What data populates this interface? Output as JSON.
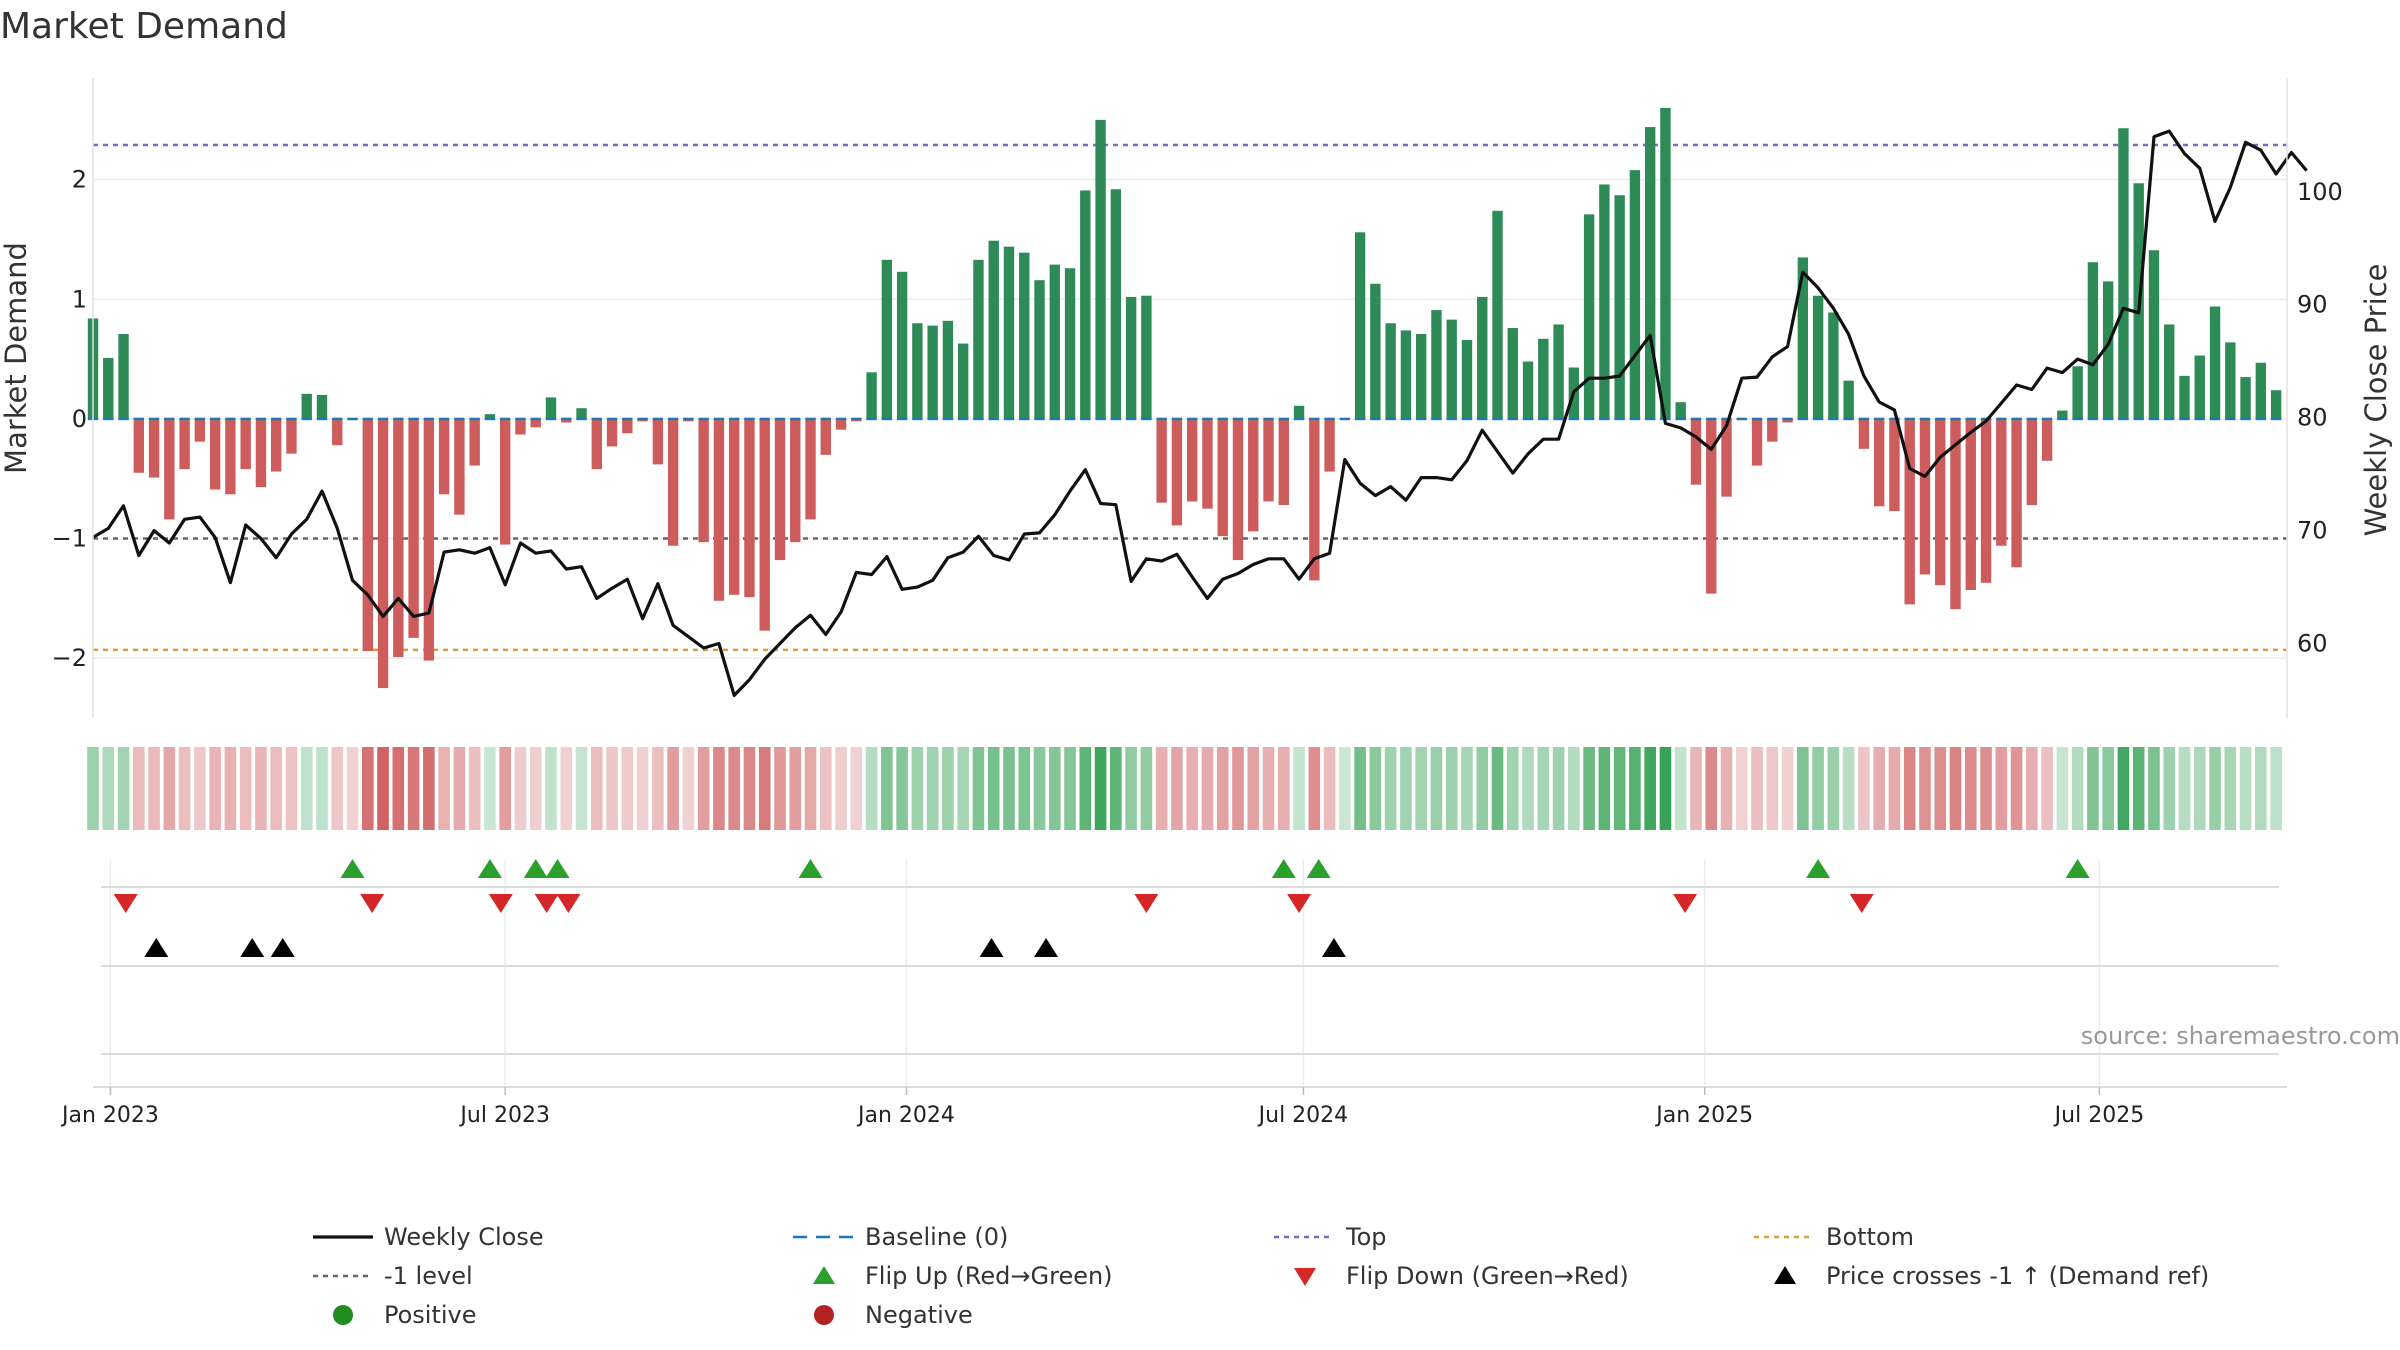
{
  "chart_data": {
    "type": "bar",
    "title": "Market Demand",
    "ylabel": "Market Demand",
    "y2label": "Weekly Close Price",
    "ylim": [
      -2.5,
      2.85
    ],
    "y2lim": [
      53.3,
      110.0
    ],
    "yticks": [
      "−2",
      "−1",
      "0",
      "1",
      "2"
    ],
    "y2ticks": [
      "60",
      "70",
      "80",
      "90",
      "100"
    ],
    "x_start": "2022-12-24",
    "x_end": "2025-09-25",
    "x_ticks": [
      {
        "date": "2023-01-01",
        "label": "Jan 2023"
      },
      {
        "date": "2023-07-01",
        "label": "Jul 2023"
      },
      {
        "date": "2024-01-01",
        "label": "Jan 2024"
      },
      {
        "date": "2024-07-01",
        "label": "Jul 2024"
      },
      {
        "date": "2025-01-01",
        "label": "Jan 2025"
      },
      {
        "date": "2025-07-01",
        "label": "Jul 2025"
      }
    ],
    "first_week": "2022-12-24",
    "reference_lines": {
      "top": 2.29,
      "bottom": -1.93,
      "minus_one": -1.0,
      "baseline": 0
    },
    "colors": {
      "positive": "#2e8b57",
      "negative": "#cd5c5c",
      "price": "#111111",
      "top": "#7b68c8",
      "bottom": "#d4a03a",
      "minus_one": "#666666",
      "baseline": "#1f77b4",
      "flip_up": "#2ca02c",
      "flip_down": "#d62728",
      "cross": "#000000",
      "legend_positive": "#228b22",
      "legend_negative": "#b22222"
    },
    "demand": [
      0.84,
      0.51,
      0.71,
      -0.45,
      -0.49,
      -0.84,
      -0.42,
      -0.19,
      -0.59,
      -0.63,
      -0.42,
      -0.57,
      -0.44,
      -0.29,
      0.21,
      0.2,
      -0.22,
      -0.01,
      -1.94,
      -2.25,
      -1.99,
      -1.83,
      -2.02,
      -0.63,
      -0.8,
      -0.39,
      0.04,
      -1.05,
      -0.13,
      -0.07,
      0.18,
      -0.03,
      0.09,
      -0.42,
      -0.23,
      -0.12,
      -0.02,
      -0.38,
      -1.06,
      -0.02,
      -1.03,
      -1.52,
      -1.47,
      -1.49,
      -1.77,
      -1.18,
      -1.03,
      -0.84,
      -0.3,
      -0.09,
      -0.02,
      0.39,
      1.33,
      1.23,
      0.8,
      0.78,
      0.82,
      0.63,
      1.33,
      1.49,
      1.44,
      1.39,
      1.16,
      1.29,
      1.26,
      1.91,
      2.5,
      1.92,
      1.02,
      1.03,
      -0.7,
      -0.89,
      -0.69,
      -0.75,
      -0.98,
      -1.18,
      -0.94,
      -0.69,
      -0.72,
      0.11,
      -1.35,
      -0.44,
      0.0,
      1.56,
      1.13,
      0.8,
      0.74,
      0.71,
      0.91,
      0.83,
      0.66,
      1.02,
      1.74,
      0.76,
      0.48,
      0.67,
      0.79,
      0.43,
      1.71,
      1.96,
      1.87,
      2.08,
      2.44,
      2.6,
      0.14,
      -0.55,
      -1.46,
      -0.65,
      -0.01,
      -0.39,
      -0.19,
      -0.03,
      1.35,
      1.03,
      0.89,
      0.32,
      -0.25,
      -0.73,
      -0.77,
      -1.55,
      -1.3,
      -1.39,
      -1.59,
      -1.43,
      -1.37,
      -1.06,
      -1.24,
      -0.72,
      -0.35,
      0.07,
      0.44,
      1.31,
      1.15,
      2.43,
      1.97,
      1.41,
      0.79,
      0.36,
      0.53,
      0.94,
      0.64,
      0.35,
      0.47,
      0.24
    ],
    "price": [
      69.3,
      70.1,
      72.1,
      67.7,
      69.9,
      68.8,
      70.9,
      71.1,
      69.3,
      65.3,
      70.4,
      69.2,
      67.5,
      69.6,
      70.9,
      73.4,
      70.1,
      65.5,
      64.2,
      62.3,
      63.9,
      62.3,
      62.6,
      68.0,
      68.2,
      67.9,
      68.4,
      65.1,
      68.8,
      67.9,
      68.1,
      66.5,
      66.7,
      63.9,
      64.8,
      65.6,
      62.1,
      65.2,
      61.5,
      60.5,
      59.5,
      59.9,
      55.3,
      56.7,
      58.5,
      59.9,
      61.3,
      62.4,
      60.7,
      62.7,
      66.2,
      66.0,
      67.6,
      64.7,
      64.9,
      65.5,
      67.5,
      68.0,
      69.4,
      67.7,
      67.3,
      69.6,
      69.7,
      71.3,
      73.4,
      75.3,
      72.3,
      72.2,
      65.4,
      67.4,
      67.2,
      67.8,
      65.8,
      63.9,
      65.6,
      66.1,
      66.9,
      67.4,
      67.4,
      65.6,
      67.4,
      67.9,
      76.2,
      74.1,
      73.0,
      73.8,
      72.6,
      74.6,
      74.6,
      74.4,
      76.1,
      78.8,
      76.9,
      75.0,
      76.7,
      78.0,
      78.0,
      82.2,
      83.4,
      83.4,
      83.6,
      85.4,
      87.2,
      79.4,
      79.0,
      78.2,
      77.1,
      79.2,
      83.4,
      83.5,
      85.3,
      86.2,
      92.8,
      91.4,
      89.6,
      87.3,
      83.6,
      81.3,
      80.6,
      75.4,
      74.7,
      76.4,
      77.5,
      78.6,
      79.6,
      81.2,
      82.8,
      82.4,
      84.3,
      83.9,
      85.1,
      84.6,
      86.4,
      89.6,
      89.2,
      104.8,
      105.3,
      103.3,
      102.0,
      97.3,
      100.3,
      104.3,
      103.6,
      101.5,
      103.4,
      101.8
    ],
    "flip_up": [
      "2023-04-22",
      "2023-06-24",
      "2023-07-15",
      "2023-07-25",
      "2023-11-18",
      "2024-06-22",
      "2024-07-08",
      "2025-02-22",
      "2025-06-21"
    ],
    "flip_down": [
      "2023-01-08",
      "2023-05-01",
      "2023-06-29",
      "2023-07-20",
      "2023-07-30",
      "2024-04-20",
      "2024-06-29",
      "2024-12-23",
      "2025-03-14"
    ],
    "cross_up": [
      "2023-01-22",
      "2023-03-07",
      "2023-03-21",
      "2024-02-09",
      "2024-03-05",
      "2024-07-15"
    ],
    "legend": [
      "Weekly Close",
      "Baseline (0)",
      "Top",
      "Bottom",
      "-1 level",
      "Flip Up (Red→Green)",
      "Flip Down (Green→Red)",
      "Price crosses -1 ↑ (Demand ref)",
      "Positive",
      "Negative"
    ],
    "source": "source: sharemaestro.com"
  }
}
